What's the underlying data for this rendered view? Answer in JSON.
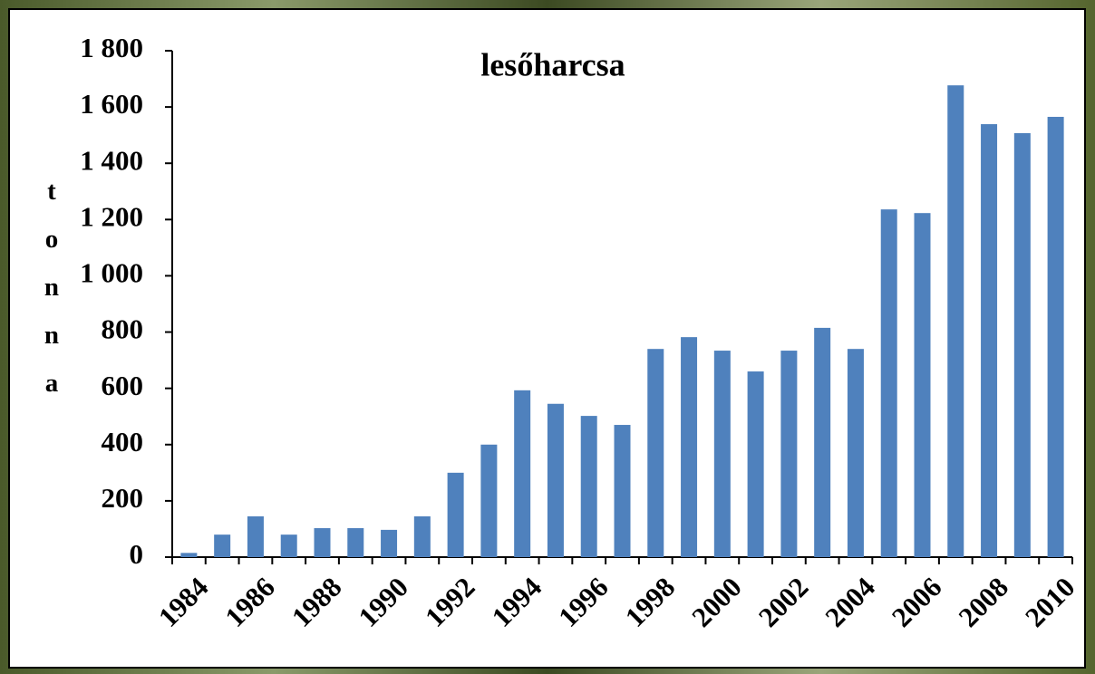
{
  "chart_data": {
    "type": "bar",
    "title": "lesőharcsa",
    "y_label": "tonna",
    "categories": [
      "1984",
      null,
      "1986",
      null,
      "1988",
      null,
      "1990",
      null,
      "1992",
      null,
      "1994",
      null,
      "1996",
      null,
      "1998",
      null,
      "2000",
      null,
      "2002",
      null,
      "2004",
      null,
      "2006",
      null,
      "2008",
      null,
      "2010"
    ],
    "values": [
      15,
      80,
      145,
      80,
      103,
      103,
      97,
      145,
      300,
      400,
      593,
      545,
      502,
      470,
      740,
      782,
      734,
      660,
      734,
      815,
      740,
      1236,
      1223,
      1677,
      1539,
      1507,
      1565
    ],
    "color": "#4f81bd",
    "ylim": [
      0,
      1800
    ],
    "yticks": [
      0,
      200,
      400,
      600,
      800,
      {
        "value": 1000,
        "label": "1 000"
      },
      {
        "value": 1200,
        "label": "1 200"
      },
      {
        "value": 1400,
        "label": "1 400"
      },
      {
        "value": 1600,
        "label": "1 600"
      },
      {
        "value": 1800,
        "label": "1 800"
      }
    ],
    "grid": false
  }
}
